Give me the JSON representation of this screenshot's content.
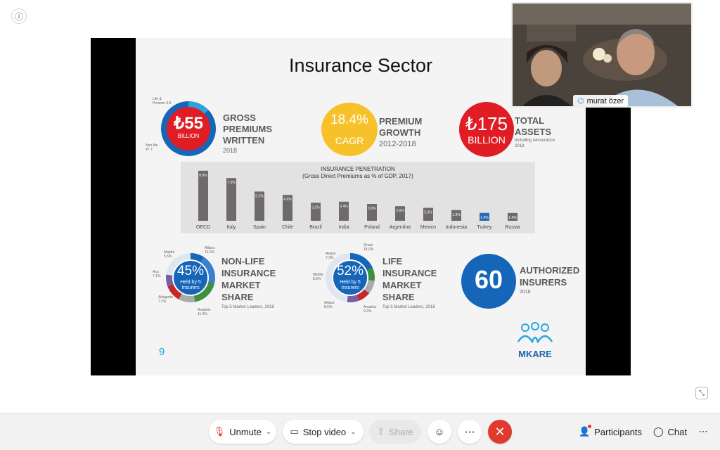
{
  "slide": {
    "title": "Insurance Sector",
    "page_number": "9",
    "gpw": {
      "amount": "₺55",
      "unit": "BILLION",
      "label_lines": [
        "GROSS",
        "PREMIUMS",
        "WRITTEN"
      ],
      "year": "2018",
      "slice_life": "Life & Pension 6.9",
      "slice_nonlife": "Non-life 47.7"
    },
    "growth": {
      "pct": "18.4%",
      "cagr": "CAGR",
      "label_lines": [
        "PREMIUM",
        "GROWTH"
      ],
      "period": "2012-2018"
    },
    "assets": {
      "amount": "₺175",
      "unit": "BILLION",
      "label_lines": [
        "TOTAL",
        "ASSETS"
      ],
      "note": "Including reinsurance",
      "year": "2018"
    },
    "nonlife": {
      "pct": "45%",
      "held": "Held by 5",
      "insurers": "Insurers",
      "label_lines": [
        "NON-LIFE",
        "INSURANCE",
        "MARKET",
        "SHARE"
      ],
      "sub": "Top 5 Market Leaders, 2018",
      "slices": [
        {
          "name": "Allianz",
          "value": "13.2%"
        },
        {
          "name": "Anadolu",
          "value": "11.9%"
        },
        {
          "name": "Aksigorta",
          "value": "7.2%"
        },
        {
          "name": "Axa",
          "value": "7.1%"
        },
        {
          "name": "Mapfre",
          "value": "5.5%"
        }
      ]
    },
    "life": {
      "pct": "52%",
      "held": "Held by 5",
      "insurers": "Insurers",
      "label_lines": [
        "LIFE",
        "INSURANCE",
        "MARKET",
        "SHARE"
      ],
      "sub": "Top 5 Market Leaders, 2018",
      "slices": [
        {
          "name": "Ziraat",
          "value": "18.0%"
        },
        {
          "name": "Anadolu",
          "value": "9.2%"
        },
        {
          "name": "Allianz",
          "value": "8.6%"
        },
        {
          "name": "Metlife",
          "value": "8.5%"
        },
        {
          "name": "Aegon",
          "value": "7.3%"
        }
      ]
    },
    "authorized": {
      "count": "60",
      "label_lines": [
        "AUTHORIZED",
        "INSURERS"
      ],
      "year": "2018"
    },
    "logo_text": "MKARE"
  },
  "chart_data": {
    "type": "bar",
    "title": "INSURANCE PENETRATION",
    "subtitle": "(Gross Direct Premiums as % of GDP, 2017)",
    "categories": [
      "OECD",
      "Italy",
      "Spain",
      "Chile",
      "Brazil",
      "India",
      "Poland",
      "Argentina",
      "Mexico",
      "Indonesia",
      "Turkey",
      "Russia"
    ],
    "values": [
      8.9,
      7.6,
      5.2,
      4.6,
      3.2,
      3.4,
      3.0,
      2.6,
      2.3,
      1.9,
      1.4,
      1.4
    ],
    "labels": [
      "8.9%",
      "7.6%",
      "5.2%",
      "4.6%",
      "3.2%",
      "3.4%",
      "3.0%",
      "2.6%",
      "2.3%",
      "1.9%",
      "1.4%",
      "1.4%"
    ],
    "highlight": "Turkey",
    "colors": {
      "bar": "#6e6a69",
      "highlight": "#2b6cb0"
    },
    "ylim": [
      0,
      9
    ],
    "grid": false
  },
  "video": {
    "participant_name": "murat özer"
  },
  "toolbar": {
    "unmute": "Unmute",
    "stop_video": "Stop video",
    "share": "Share",
    "participants": "Participants",
    "chat": "Chat"
  },
  "colors": {
    "red": "#e01d25",
    "blue": "#1565b8",
    "yellow": "#f7c12a",
    "end_call": "#e0392e"
  }
}
